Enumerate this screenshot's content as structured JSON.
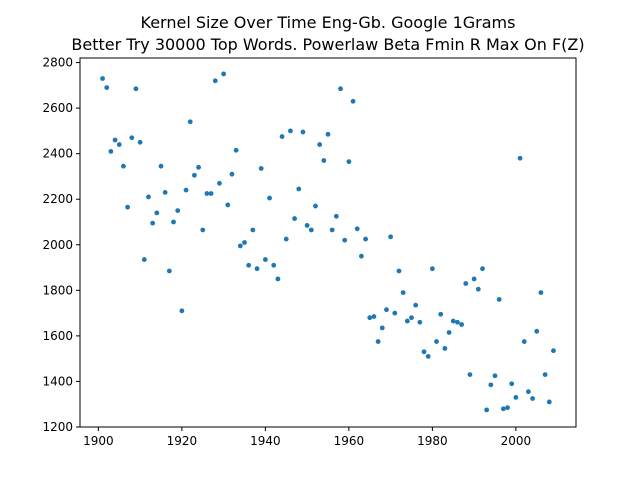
{
  "chart_data": {
    "type": "scatter",
    "title": "Kernel Size Over Time Eng-Gb. Google 1Grams",
    "subtitle": "Better Try 30000 Top Words. Powerlaw Beta Fmin R Max On F(Z)",
    "xlabel": "",
    "ylabel": "",
    "xlim": [
      1895.6,
      2014.4
    ],
    "ylim": [
      1200,
      2820
    ],
    "x_ticks": [
      1900,
      1920,
      1940,
      1960,
      1980,
      2000
    ],
    "y_ticks": [
      1200,
      1400,
      1600,
      1800,
      2000,
      2200,
      2400,
      2600,
      2800
    ],
    "grid": false,
    "legend": "none",
    "marker_color": "#1f77b4",
    "points": [
      [
        1901,
        2730
      ],
      [
        1902,
        2690
      ],
      [
        1903,
        2410
      ],
      [
        1904,
        2460
      ],
      [
        1905,
        2440
      ],
      [
        1906,
        2345
      ],
      [
        1907,
        2165
      ],
      [
        1908,
        2470
      ],
      [
        1909,
        2685
      ],
      [
        1910,
        2450
      ],
      [
        1911,
        1935
      ],
      [
        1912,
        2210
      ],
      [
        1913,
        2095
      ],
      [
        1914,
        2140
      ],
      [
        1915,
        2345
      ],
      [
        1916,
        2230
      ],
      [
        1917,
        1885
      ],
      [
        1918,
        2100
      ],
      [
        1919,
        2150
      ],
      [
        1920,
        1710
      ],
      [
        1921,
        2240
      ],
      [
        1922,
        2540
      ],
      [
        1923,
        2305
      ],
      [
        1924,
        2340
      ],
      [
        1925,
        2065
      ],
      [
        1926,
        2225
      ],
      [
        1927,
        2225
      ],
      [
        1928,
        2720
      ],
      [
        1929,
        2270
      ],
      [
        1930,
        2750
      ],
      [
        1931,
        2175
      ],
      [
        1932,
        2310
      ],
      [
        1933,
        2415
      ],
      [
        1934,
        1995
      ],
      [
        1935,
        2010
      ],
      [
        1936,
        1910
      ],
      [
        1937,
        2065
      ],
      [
        1938,
        1895
      ],
      [
        1939,
        2335
      ],
      [
        1940,
        1935
      ],
      [
        1941,
        2205
      ],
      [
        1942,
        1910
      ],
      [
        1943,
        1850
      ],
      [
        1944,
        2475
      ],
      [
        1945,
        2025
      ],
      [
        1946,
        2500
      ],
      [
        1947,
        2115
      ],
      [
        1948,
        2245
      ],
      [
        1949,
        2495
      ],
      [
        1950,
        2085
      ],
      [
        1951,
        2065
      ],
      [
        1952,
        2170
      ],
      [
        1953,
        2440
      ],
      [
        1954,
        2370
      ],
      [
        1955,
        2485
      ],
      [
        1956,
        2065
      ],
      [
        1957,
        2125
      ],
      [
        1958,
        2685
      ],
      [
        1959,
        2020
      ],
      [
        1960,
        2365
      ],
      [
        1961,
        2630
      ],
      [
        1962,
        2070
      ],
      [
        1963,
        1950
      ],
      [
        1964,
        2025
      ],
      [
        1965,
        1680
      ],
      [
        1966,
        1685
      ],
      [
        1967,
        1575
      ],
      [
        1968,
        1635
      ],
      [
        1969,
        1715
      ],
      [
        1970,
        2035
      ],
      [
        1971,
        1700
      ],
      [
        1972,
        1885
      ],
      [
        1973,
        1790
      ],
      [
        1974,
        1665
      ],
      [
        1975,
        1680
      ],
      [
        1976,
        1735
      ],
      [
        1977,
        1660
      ],
      [
        1978,
        1530
      ],
      [
        1979,
        1510
      ],
      [
        1980,
        1895
      ],
      [
        1981,
        1575
      ],
      [
        1982,
        1695
      ],
      [
        1983,
        1545
      ],
      [
        1984,
        1615
      ],
      [
        1985,
        1665
      ],
      [
        1986,
        1660
      ],
      [
        1987,
        1650
      ],
      [
        1988,
        1830
      ],
      [
        1989,
        1430
      ],
      [
        1990,
        1850
      ],
      [
        1991,
        1805
      ],
      [
        1992,
        1895
      ],
      [
        1993,
        1275
      ],
      [
        1994,
        1385
      ],
      [
        1995,
        1425
      ],
      [
        1996,
        1760
      ],
      [
        1997,
        1280
      ],
      [
        1998,
        1285
      ],
      [
        1999,
        1390
      ],
      [
        2000,
        1330
      ],
      [
        2001,
        2380
      ],
      [
        2002,
        1575
      ],
      [
        2003,
        1355
      ],
      [
        2004,
        1325
      ],
      [
        2005,
        1620
      ],
      [
        2006,
        1790
      ],
      [
        2007,
        1430
      ],
      [
        2008,
        1310
      ],
      [
        2009,
        1535
      ]
    ]
  }
}
